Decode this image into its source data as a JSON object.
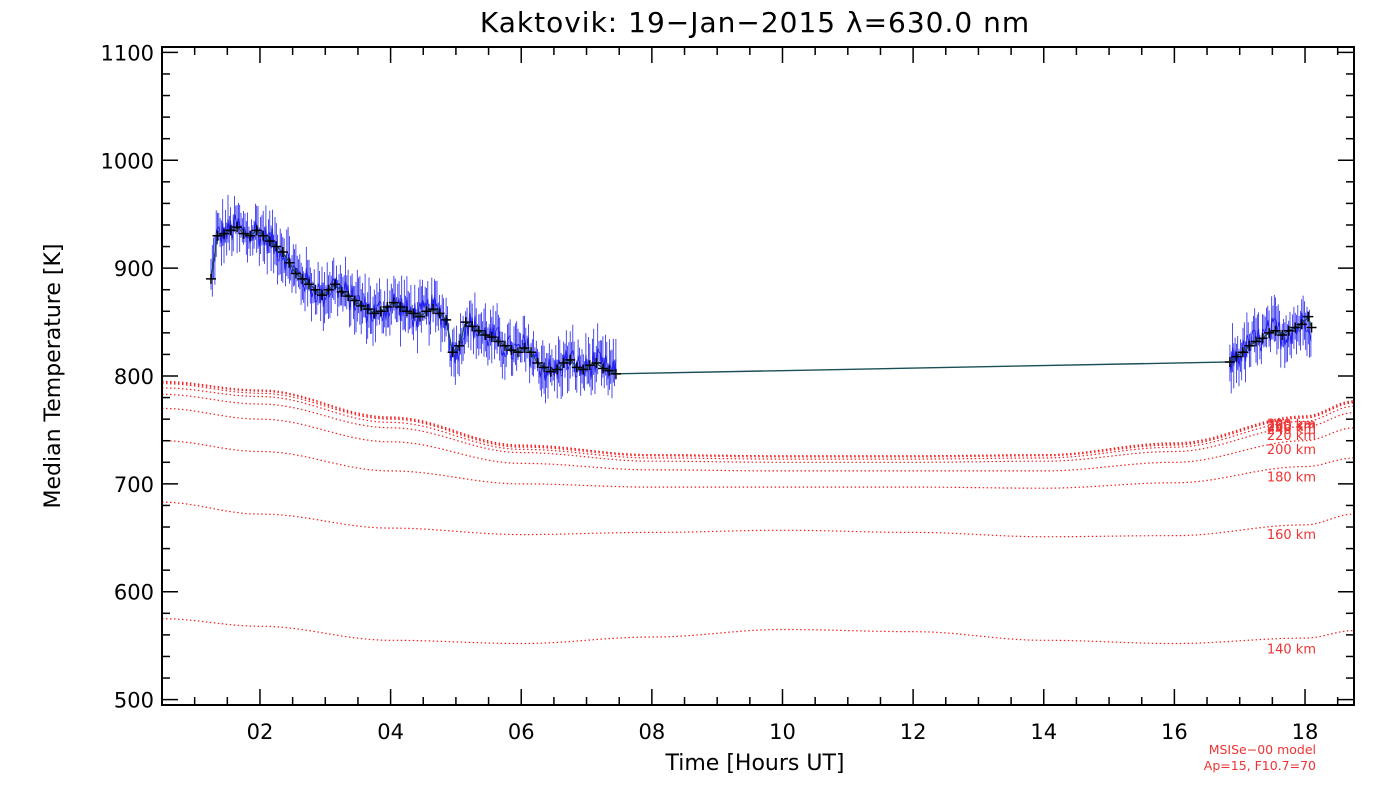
{
  "chart_data": {
    "type": "line",
    "title": "Kaktovik: 19−Jan−2015 λ=630.0 nm",
    "xlabel": "Time [Hours UT]",
    "ylabel": "Median Temperature [K]",
    "xlim": [
      0.5,
      18.75
    ],
    "ylim": [
      495,
      1105
    ],
    "x_ticks": [
      {
        "value": 2,
        "label": "02"
      },
      {
        "value": 4,
        "label": "04"
      },
      {
        "value": 6,
        "label": "06"
      },
      {
        "value": 8,
        "label": "08"
      },
      {
        "value": 10,
        "label": "10"
      },
      {
        "value": 12,
        "label": "12"
      },
      {
        "value": 14,
        "label": "14"
      },
      {
        "value": 16,
        "label": "16"
      },
      {
        "value": 18,
        "label": "18"
      }
    ],
    "y_ticks": [
      {
        "value": 500,
        "label": "500"
      },
      {
        "value": 600,
        "label": "600"
      },
      {
        "value": 700,
        "label": "700"
      },
      {
        "value": 800,
        "label": "800"
      },
      {
        "value": 900,
        "label": "900"
      },
      {
        "value": 1000,
        "label": "1000"
      },
      {
        "value": 1100,
        "label": "1100"
      }
    ],
    "median_series": {
      "x": [
        1.25,
        1.35,
        1.45,
        1.55,
        1.65,
        1.75,
        1.85,
        1.95,
        2.05,
        2.15,
        2.25,
        2.35,
        2.45,
        2.55,
        2.65,
        2.75,
        2.85,
        2.95,
        3.05,
        3.15,
        3.25,
        3.35,
        3.45,
        3.55,
        3.65,
        3.75,
        3.85,
        3.95,
        4.05,
        4.15,
        4.25,
        4.35,
        4.45,
        4.55,
        4.65,
        4.75,
        4.85,
        4.95,
        5.05,
        5.15,
        5.25,
        5.35,
        5.45,
        5.55,
        5.65,
        5.75,
        5.85,
        5.95,
        6.05,
        6.15,
        6.25,
        6.35,
        6.45,
        6.55,
        6.65,
        6.75,
        6.85,
        6.95,
        7.05,
        7.15,
        7.25,
        7.35,
        7.45,
        16.85,
        16.95,
        17.05,
        17.15,
        17.25,
        17.35,
        17.45,
        17.55,
        17.65,
        17.75,
        17.85,
        17.95,
        18.05,
        18.1
      ],
      "y": [
        890,
        930,
        932,
        935,
        938,
        932,
        930,
        935,
        930,
        925,
        920,
        915,
        905,
        895,
        890,
        885,
        880,
        875,
        880,
        885,
        878,
        874,
        870,
        865,
        862,
        858,
        860,
        864,
        868,
        864,
        860,
        858,
        855,
        860,
        862,
        858,
        852,
        822,
        828,
        850,
        846,
        842,
        838,
        836,
        832,
        828,
        824,
        822,
        826,
        822,
        812,
        808,
        804,
        806,
        812,
        815,
        808,
        806,
        810,
        812,
        807,
        805,
        802,
        813,
        818,
        822,
        828,
        832,
        835,
        840,
        842,
        838,
        842,
        845,
        848,
        855,
        845
      ],
      "gap_after_index": 62
    },
    "model_curves": [
      {
        "label": "140 km",
        "x": [
          0.5,
          2,
          4,
          6,
          8,
          10,
          12,
          14,
          16,
          18,
          18.75
        ],
        "y": [
          575,
          568,
          555,
          552,
          558,
          565,
          563,
          555,
          552,
          557,
          564
        ]
      },
      {
        "label": "160 km",
        "x": [
          0.5,
          2,
          4,
          6,
          8,
          10,
          12,
          14,
          16,
          18,
          18.75
        ],
        "y": [
          683,
          672,
          659,
          653,
          655,
          657,
          655,
          651,
          652,
          662,
          672
        ]
      },
      {
        "label": "180 km",
        "x": [
          0.5,
          2,
          4,
          6,
          8,
          10,
          12,
          14,
          16,
          18,
          18.75
        ],
        "y": [
          740,
          730,
          712,
          700,
          697,
          697,
          697,
          696,
          701,
          716,
          724
        ]
      },
      {
        "label": "200 km",
        "x": [
          0.5,
          2,
          4,
          6,
          8,
          10,
          12,
          14,
          16,
          18,
          18.75
        ],
        "y": [
          770,
          760,
          739,
          719,
          713,
          712,
          712,
          712,
          720,
          740,
          752
        ]
      },
      {
        "label": "220 km",
        "x": [
          0.5,
          2,
          4,
          6,
          8,
          10,
          12,
          14,
          16,
          18,
          18.75
        ],
        "y": [
          783,
          774,
          752,
          729,
          721,
          720,
          720,
          721,
          730,
          753,
          766
        ]
      },
      {
        "label": "240 km",
        "x": [
          0.5,
          2,
          4,
          6,
          8,
          10,
          12,
          14,
          16,
          18,
          18.75
        ],
        "y": [
          789,
          781,
          757,
          732,
          724,
          723,
          723,
          724,
          734,
          758,
          772
        ]
      },
      {
        "label": "260 km",
        "x": [
          0.5,
          2,
          4,
          6,
          8,
          10,
          12,
          14,
          16,
          18,
          18.75
        ],
        "y": [
          793,
          784,
          760,
          734,
          726,
          725,
          725,
          726,
          736,
          761,
          775
        ]
      },
      {
        "label": "280 km",
        "x": [
          0.5,
          2,
          4,
          6,
          8,
          10,
          12,
          14,
          16,
          18,
          18.75
        ],
        "y": [
          794,
          786,
          761,
          735,
          727,
          726,
          726,
          727,
          737,
          762,
          776
        ]
      },
      {
        "label": "300 km",
        "x": [
          0.5,
          2,
          4,
          6,
          8,
          10,
          12,
          14,
          16,
          18,
          18.75
        ],
        "y": [
          795,
          787,
          762,
          736,
          727,
          726,
          726,
          727,
          738,
          763,
          777
        ]
      }
    ],
    "model_note": [
      "MSISe−00 model",
      "Ap=15, F10.7=70"
    ],
    "colors": {
      "median": "#000000",
      "samples": "#2222ee",
      "connector": "#1a4f55",
      "model": "#ee2222",
      "axes": "#000000"
    }
  }
}
